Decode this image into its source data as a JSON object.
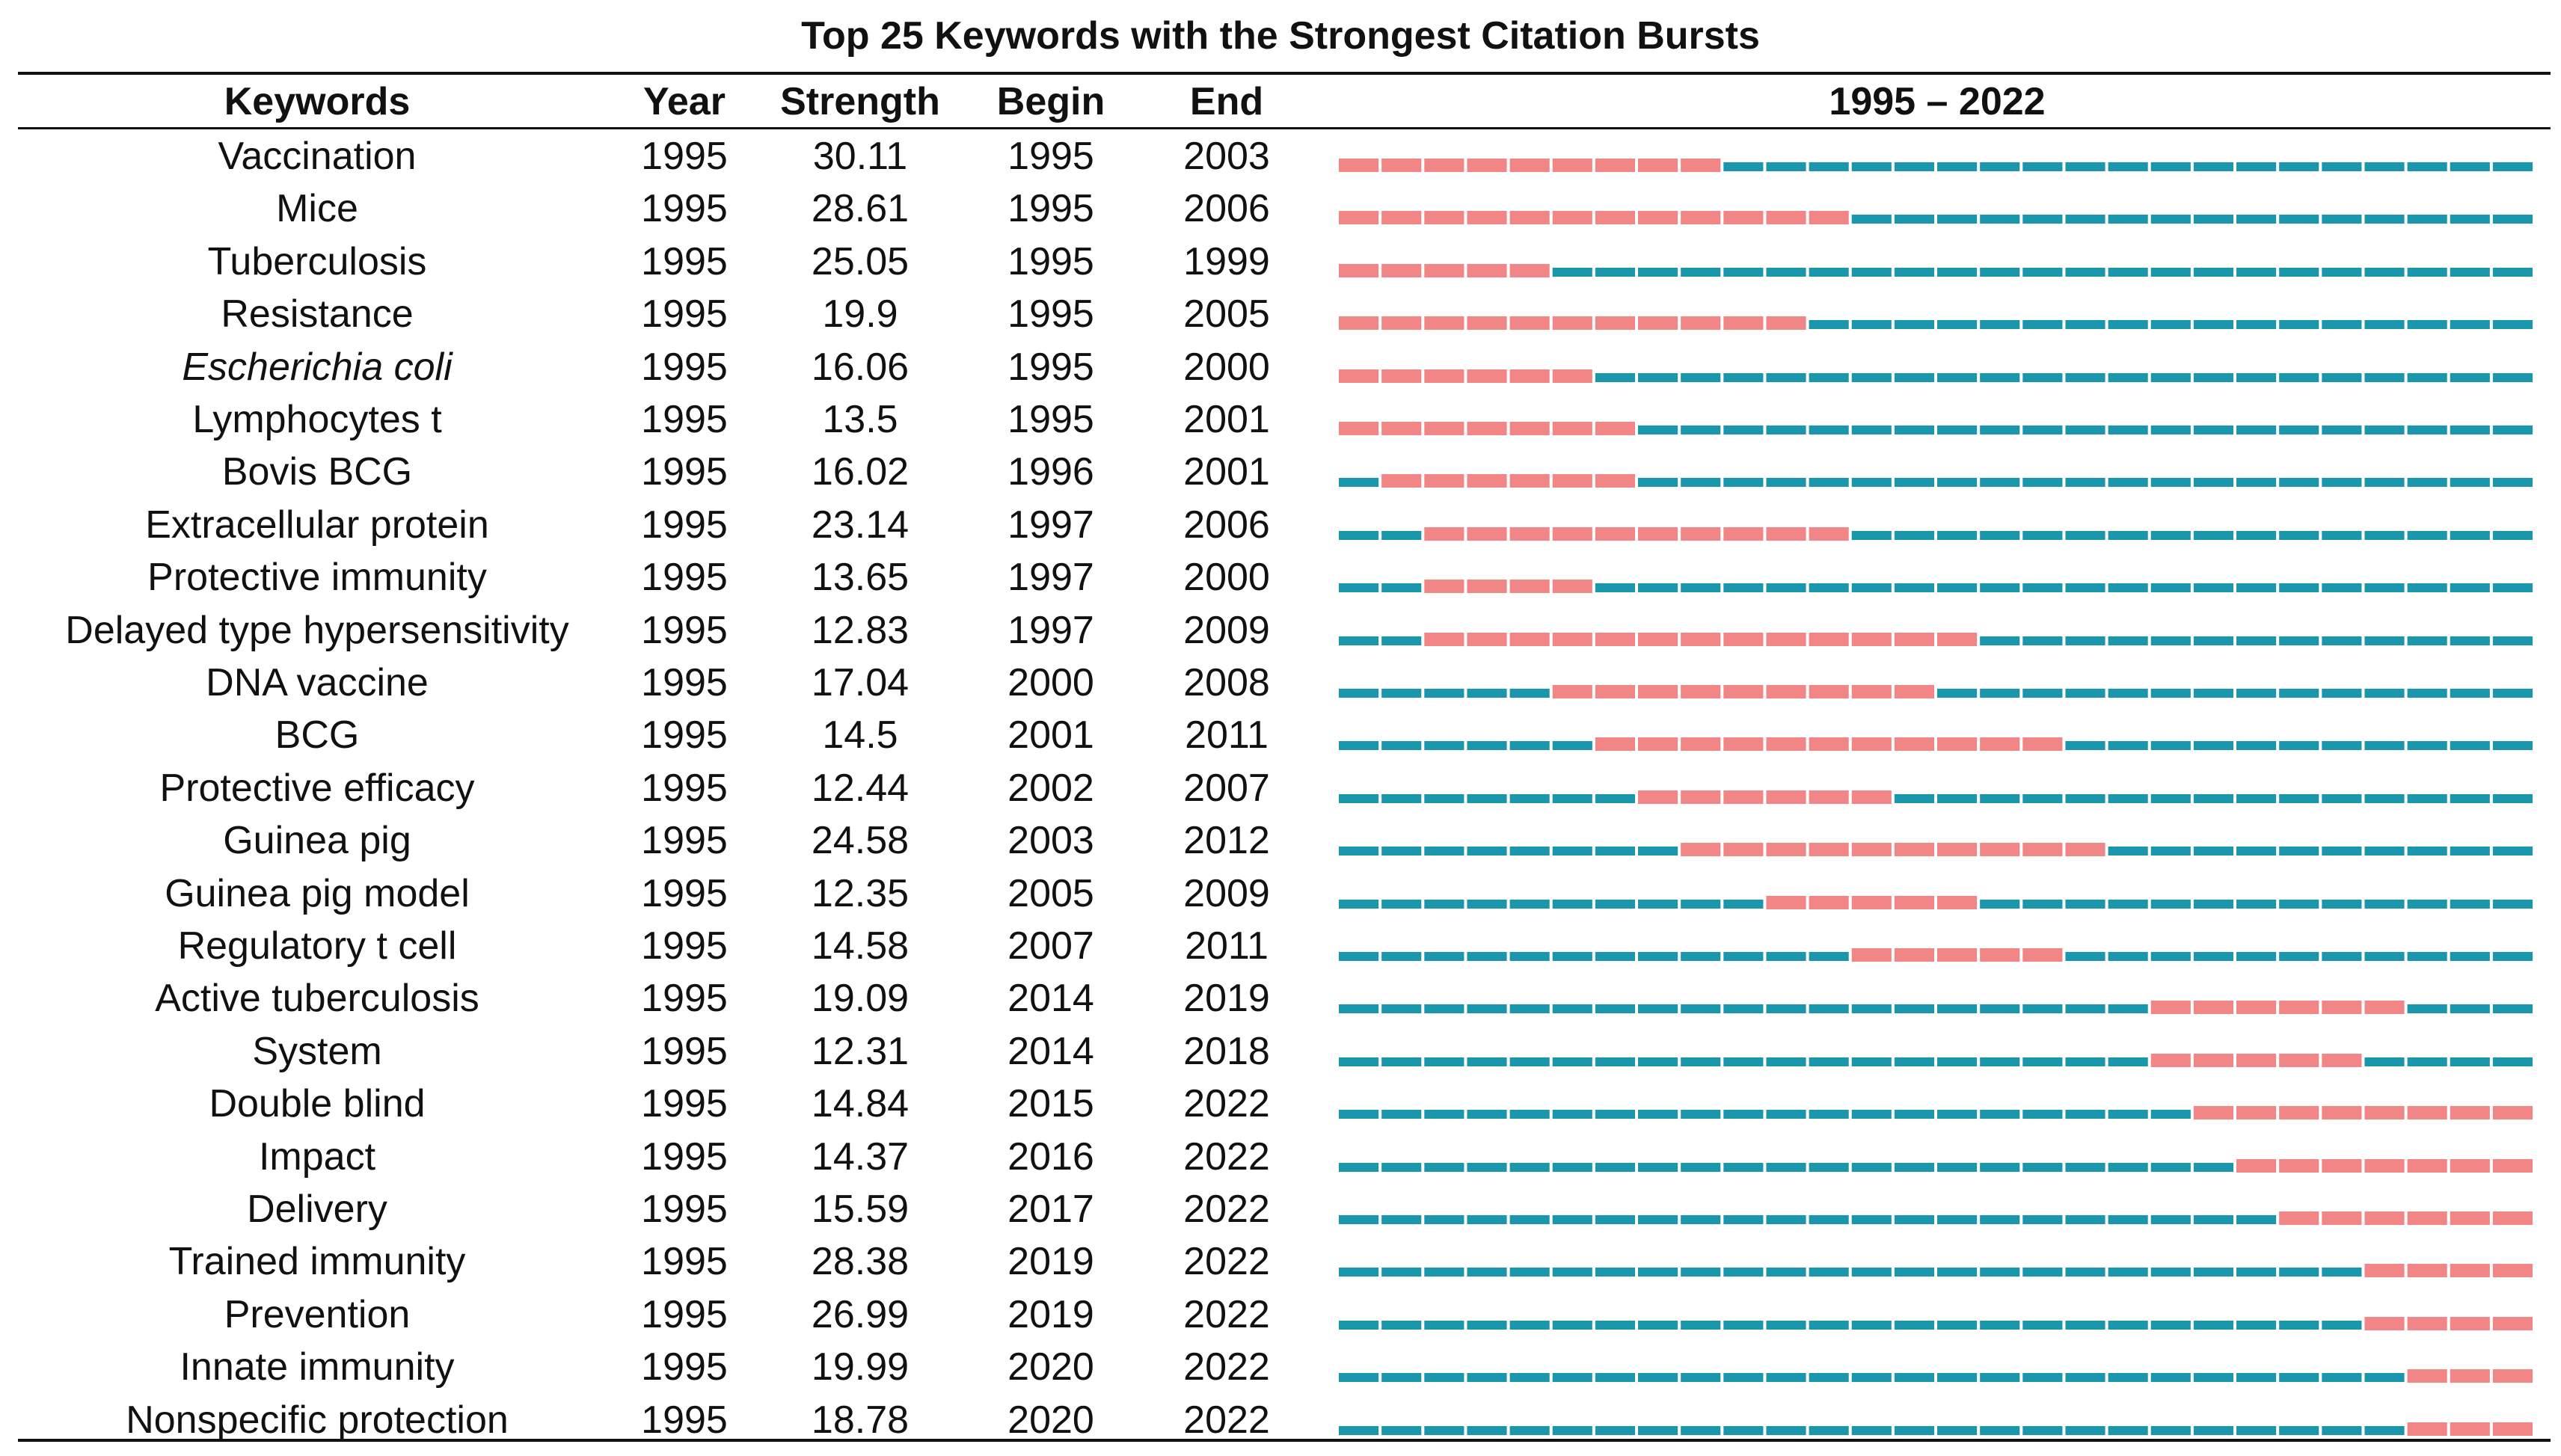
{
  "chart_data": {
    "type": "table",
    "title": "Top 25 Keywords with the Strongest Citation Bursts",
    "columns": [
      "Keywords",
      "Year",
      "Strength",
      "Begin",
      "End"
    ],
    "range_label": "1995 – 2022",
    "range": [
      1995,
      2022
    ],
    "colors": {
      "burst": "#f28585",
      "baseline": "#1b97ad"
    },
    "rows": [
      {
        "keyword": "Vaccination",
        "italic": false,
        "year": "1995",
        "strength": "30.11",
        "begin": "1995",
        "end": "2003"
      },
      {
        "keyword": "Mice",
        "italic": false,
        "year": "1995",
        "strength": "28.61",
        "begin": "1995",
        "end": "2006"
      },
      {
        "keyword": "Tuberculosis",
        "italic": false,
        "year": "1995",
        "strength": "25.05",
        "begin": "1995",
        "end": "1999"
      },
      {
        "keyword": "Resistance",
        "italic": false,
        "year": "1995",
        "strength": "19.9",
        "begin": "1995",
        "end": "2005"
      },
      {
        "keyword": "Escherichia coli",
        "italic": true,
        "year": "1995",
        "strength": "16.06",
        "begin": "1995",
        "end": "2000"
      },
      {
        "keyword": "Lymphocytes t",
        "italic": false,
        "year": "1995",
        "strength": "13.5",
        "begin": "1995",
        "end": "2001"
      },
      {
        "keyword": "Bovis BCG",
        "italic": false,
        "year": "1995",
        "strength": "16.02",
        "begin": "1996",
        "end": "2001"
      },
      {
        "keyword": "Extracellular protein",
        "italic": false,
        "year": "1995",
        "strength": "23.14",
        "begin": "1997",
        "end": "2006"
      },
      {
        "keyword": "Protective immunity",
        "italic": false,
        "year": "1995",
        "strength": "13.65",
        "begin": "1997",
        "end": "2000"
      },
      {
        "keyword": "Delayed type hypersensitivity",
        "italic": false,
        "year": "1995",
        "strength": "12.83",
        "begin": "1997",
        "end": "2009"
      },
      {
        "keyword": "DNA vaccine",
        "italic": false,
        "year": "1995",
        "strength": "17.04",
        "begin": "2000",
        "end": "2008"
      },
      {
        "keyword": "BCG",
        "italic": false,
        "year": "1995",
        "strength": "14.5",
        "begin": "2001",
        "end": "2011"
      },
      {
        "keyword": "Protective efficacy",
        "italic": false,
        "year": "1995",
        "strength": "12.44",
        "begin": "2002",
        "end": "2007"
      },
      {
        "keyword": "Guinea pig",
        "italic": false,
        "year": "1995",
        "strength": "24.58",
        "begin": "2003",
        "end": "2012"
      },
      {
        "keyword": "Guinea pig model",
        "italic": false,
        "year": "1995",
        "strength": "12.35",
        "begin": "2005",
        "end": "2009"
      },
      {
        "keyword": "Regulatory t cell",
        "italic": false,
        "year": "1995",
        "strength": "14.58",
        "begin": "2007",
        "end": "2011"
      },
      {
        "keyword": "Active tuberculosis",
        "italic": false,
        "year": "1995",
        "strength": "19.09",
        "begin": "2014",
        "end": "2019"
      },
      {
        "keyword": "System",
        "italic": false,
        "year": "1995",
        "strength": "12.31",
        "begin": "2014",
        "end": "2018"
      },
      {
        "keyword": "Double blind",
        "italic": false,
        "year": "1995",
        "strength": "14.84",
        "begin": "2015",
        "end": "2022"
      },
      {
        "keyword": "Impact",
        "italic": false,
        "year": "1995",
        "strength": "14.37",
        "begin": "2016",
        "end": "2022"
      },
      {
        "keyword": "Delivery",
        "italic": false,
        "year": "1995",
        "strength": "15.59",
        "begin": "2017",
        "end": "2022"
      },
      {
        "keyword": "Trained immunity",
        "italic": false,
        "year": "1995",
        "strength": "28.38",
        "begin": "2019",
        "end": "2022"
      },
      {
        "keyword": "Prevention",
        "italic": false,
        "year": "1995",
        "strength": "26.99",
        "begin": "2019",
        "end": "2022"
      },
      {
        "keyword": "Innate immunity",
        "italic": false,
        "year": "1995",
        "strength": "19.99",
        "begin": "2020",
        "end": "2022"
      },
      {
        "keyword": "Nonspecific protection",
        "italic": false,
        "year": "1995",
        "strength": "18.78",
        "begin": "2020",
        "end": "2022"
      }
    ]
  }
}
